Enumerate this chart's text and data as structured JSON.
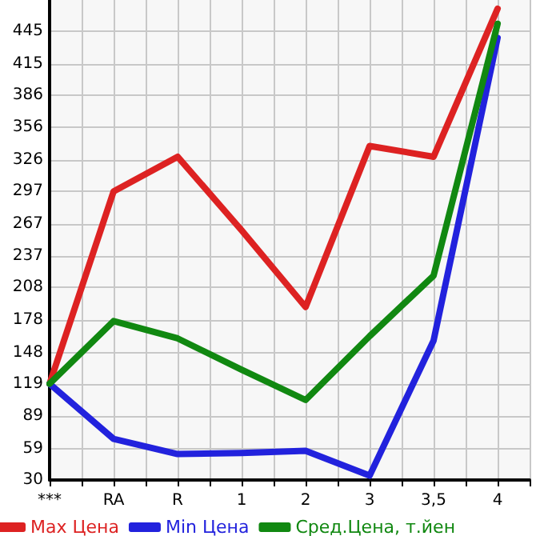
{
  "chart_data": {
    "type": "line",
    "categories": [
      "***",
      "RA",
      "R",
      "1",
      "2",
      "3",
      "3,5",
      "4"
    ],
    "series": [
      {
        "name": "Max Цена",
        "color": "#dd2222",
        "values": [
          119,
          297,
          329,
          261,
          190,
          339,
          329,
          466
        ]
      },
      {
        "name": "Min Цена",
        "color": "#2222dd",
        "values": [
          119,
          68,
          54,
          55,
          57,
          34,
          159,
          439
        ]
      },
      {
        "name": "Сред.Цена, т.йен",
        "color": "#118811",
        "values": [
          119,
          177,
          161,
          132,
          104,
          163,
          219,
          452
        ]
      }
    ],
    "ylim": [
      30,
      474
    ],
    "yticks": [
      30,
      59,
      89,
      119,
      148,
      178,
      208,
      237,
      267,
      297,
      326,
      356,
      386,
      415,
      445
    ],
    "grid": true,
    "legend": "bottom",
    "marker": "none",
    "line_style": "solid"
  }
}
